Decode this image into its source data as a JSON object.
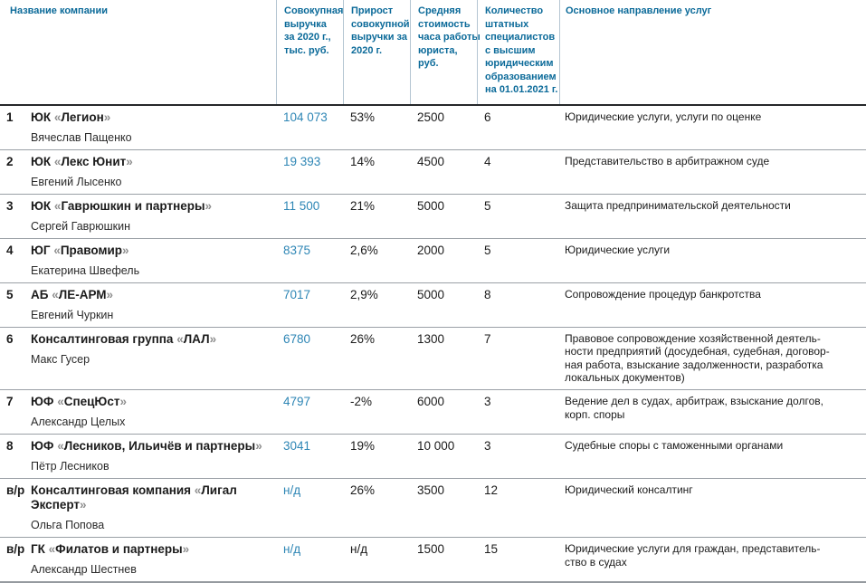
{
  "colors": {
    "header_text": "#0b6a99",
    "revenue_value": "#2e86b5",
    "header_sep": "#b4c5d2",
    "header_bottom": "#26282a",
    "row_sep": "#9aa0a6"
  },
  "table": {
    "headers": {
      "company": "Название компании",
      "revenue": "Совокупная\nвыручка\nза 2020 г.,\nтыс. руб.",
      "growth": "Прирост\nсовокупной\nвыручки за\n2020 г.",
      "rate": "Средняя\nстоимость\nчаса работы\nюриста,\nруб.",
      "staff": "Количество\nштатных\nспециалистов\nс высшим\nюридическим\nобразованием\nна 01.01.2021 г.",
      "services": "Основное направление услуг"
    },
    "rows": [
      {
        "rank": "1",
        "company": "ЮК «Легион»",
        "head": "Вячеслав Пащенко",
        "revenue": "104 073",
        "growth": "53%",
        "rate": "2500",
        "staff": "6",
        "services": "Юридические услуги, услуги по оценке"
      },
      {
        "rank": "2",
        "company": "ЮК «Лекс Юнит»",
        "head": "Евгений Лысенко",
        "revenue": "19 393",
        "growth": "14%",
        "rate": "4500",
        "staff": "4",
        "services": "Представительство в арбитражном суде"
      },
      {
        "rank": "3",
        "company": "ЮК «Гаврюшкин и партнеры»",
        "head": "Сергей Гаврюшкин",
        "revenue": "11 500",
        "growth": "21%",
        "rate": "5000",
        "staff": "5",
        "services": "Защита предпринимательской деятельности"
      },
      {
        "rank": "4",
        "company": "ЮГ «Правомир»",
        "head": "Екатерина Швефель",
        "revenue": "8375",
        "growth": "2,6%",
        "rate": "2000",
        "staff": "5",
        "services": "Юридические услуги"
      },
      {
        "rank": "5",
        "company": "АБ «ЛЕ-АРМ»",
        "head": "Евгений Чуркин",
        "revenue": "7017",
        "growth": "2,9%",
        "rate": "5000",
        "staff": "8",
        "services": "Сопровождение процедур банкротства"
      },
      {
        "rank": "6",
        "company": "Консалтинговая группа «ЛАЛ»",
        "head": "Макс Гусер",
        "revenue": "6780",
        "growth": "26%",
        "rate": "1300",
        "staff": "7",
        "services": "Правовое сопровождение хозяйственной деятель-\nности предприятий (досудебная, судебная,  договор-\nная работа, взыскание задолженности, разработка\nлокальных документов)"
      },
      {
        "rank": "7",
        "company": "ЮФ «СпецЮст»",
        "head": "Александр Целых",
        "revenue": "4797",
        "growth": "-2%",
        "rate": "6000",
        "staff": "3",
        "services": "Ведение дел в судах, арбитраж, взыскание долгов,\nкорп. споры"
      },
      {
        "rank": "8",
        "company": "ЮФ «Лесников, Ильичёв и партнеры»",
        "head": "Пётр Лесников",
        "revenue": "3041",
        "growth": "19%",
        "rate": "10 000",
        "staff": "3",
        "services": "Судебные споры с таможенными органами"
      },
      {
        "rank": "в/р",
        "company": "Консалтинговая компания «Лигал\nЭксперт»",
        "head": "Ольга Попова",
        "revenue": "н/д",
        "growth": "26%",
        "rate": "3500",
        "staff": "12",
        "services": "Юридический консалтинг"
      },
      {
        "rank": "в/р",
        "company": "ГК «Филатов и партнеры»",
        "head": "Александр Шестнев",
        "revenue": "н/д",
        "growth": "н/д",
        "rate": "1500",
        "staff": "15",
        "services": "Юридические услуги для граждан, представитель-\nство в судах"
      }
    ]
  }
}
